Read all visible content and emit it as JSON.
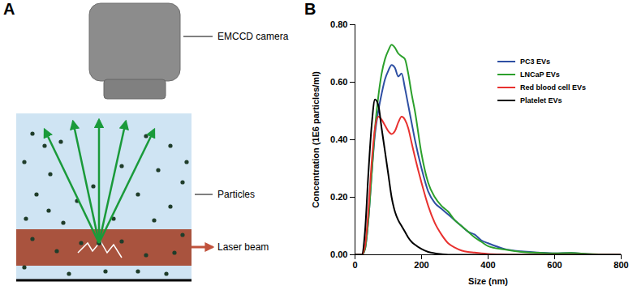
{
  "diagram": {
    "panel": "A",
    "labels": {
      "camera": "EMCCD camera",
      "particles": "Particles",
      "laser": "Laser beam"
    }
  },
  "chart_data": {
    "type": "line",
    "panel": "B",
    "x_label": "Size (nm)",
    "y_label": "Concentration (1E6 particles/ml)",
    "x": [
      0,
      20,
      30,
      40,
      50,
      60,
      70,
      80,
      90,
      100,
      110,
      120,
      130,
      140,
      150,
      160,
      170,
      180,
      200,
      220,
      240,
      260,
      280,
      300,
      320,
      340,
      360,
      380,
      400,
      450,
      500,
      550,
      600,
      650,
      700,
      750,
      800
    ],
    "series": [
      {
        "name": "PC3 EVs",
        "color": "#2e4fa3",
        "values": [
          0,
          0,
          0.02,
          0.12,
          0.28,
          0.42,
          0.5,
          0.56,
          0.61,
          0.64,
          0.66,
          0.65,
          0.62,
          0.63,
          0.58,
          0.52,
          0.46,
          0.4,
          0.3,
          0.22,
          0.18,
          0.16,
          0.14,
          0.12,
          0.1,
          0.08,
          0.07,
          0.05,
          0.04,
          0.02,
          0.012,
          0.008,
          0.005,
          0.006,
          0.002,
          0.001,
          0
        ]
      },
      {
        "name": "LNCaP EVs",
        "color": "#2ca02c",
        "values": [
          0,
          0,
          0.02,
          0.12,
          0.28,
          0.44,
          0.55,
          0.63,
          0.68,
          0.71,
          0.73,
          0.72,
          0.7,
          0.69,
          0.68,
          0.63,
          0.56,
          0.5,
          0.35,
          0.25,
          0.2,
          0.17,
          0.15,
          0.12,
          0.1,
          0.08,
          0.06,
          0.045,
          0.03,
          0.018,
          0.01,
          0.007,
          0.005,
          0.006,
          0.003,
          0.001,
          0
        ]
      },
      {
        "name": "Red blood cell EVs",
        "color": "#e8312f",
        "values": [
          0,
          0,
          0.03,
          0.15,
          0.32,
          0.44,
          0.48,
          0.47,
          0.45,
          0.43,
          0.42,
          0.43,
          0.46,
          0.48,
          0.47,
          0.44,
          0.39,
          0.34,
          0.25,
          0.17,
          0.11,
          0.07,
          0.04,
          0.025,
          0.015,
          0.01,
          0.008,
          0.005,
          0.003,
          0.001,
          0,
          0,
          0,
          0,
          0,
          0,
          0
        ]
      },
      {
        "name": "Platelet EVs",
        "color": "#000000",
        "values": [
          0,
          0,
          0.08,
          0.28,
          0.45,
          0.54,
          0.52,
          0.44,
          0.36,
          0.28,
          0.2,
          0.15,
          0.12,
          0.1,
          0.08,
          0.06,
          0.045,
          0.035,
          0.02,
          0.01,
          0.005,
          0.002,
          0,
          0,
          0,
          0,
          0,
          0,
          0,
          0,
          0,
          0,
          0,
          0,
          0,
          0,
          0
        ]
      }
    ],
    "xlim": [
      0,
      800
    ],
    "xticks": [
      0,
      200,
      400,
      600,
      800
    ],
    "ylim": [
      0,
      0.8
    ],
    "yticks": [
      {
        "value": 0,
        "label": "0.00"
      },
      {
        "value": 0.2,
        "label": "0.20"
      },
      {
        "value": 0.4,
        "label": "0.40"
      },
      {
        "value": 0.6,
        "label": "0.60"
      },
      {
        "value": 0.8,
        "label": "0.80"
      }
    ],
    "legend": "top-right",
    "grid": false
  }
}
